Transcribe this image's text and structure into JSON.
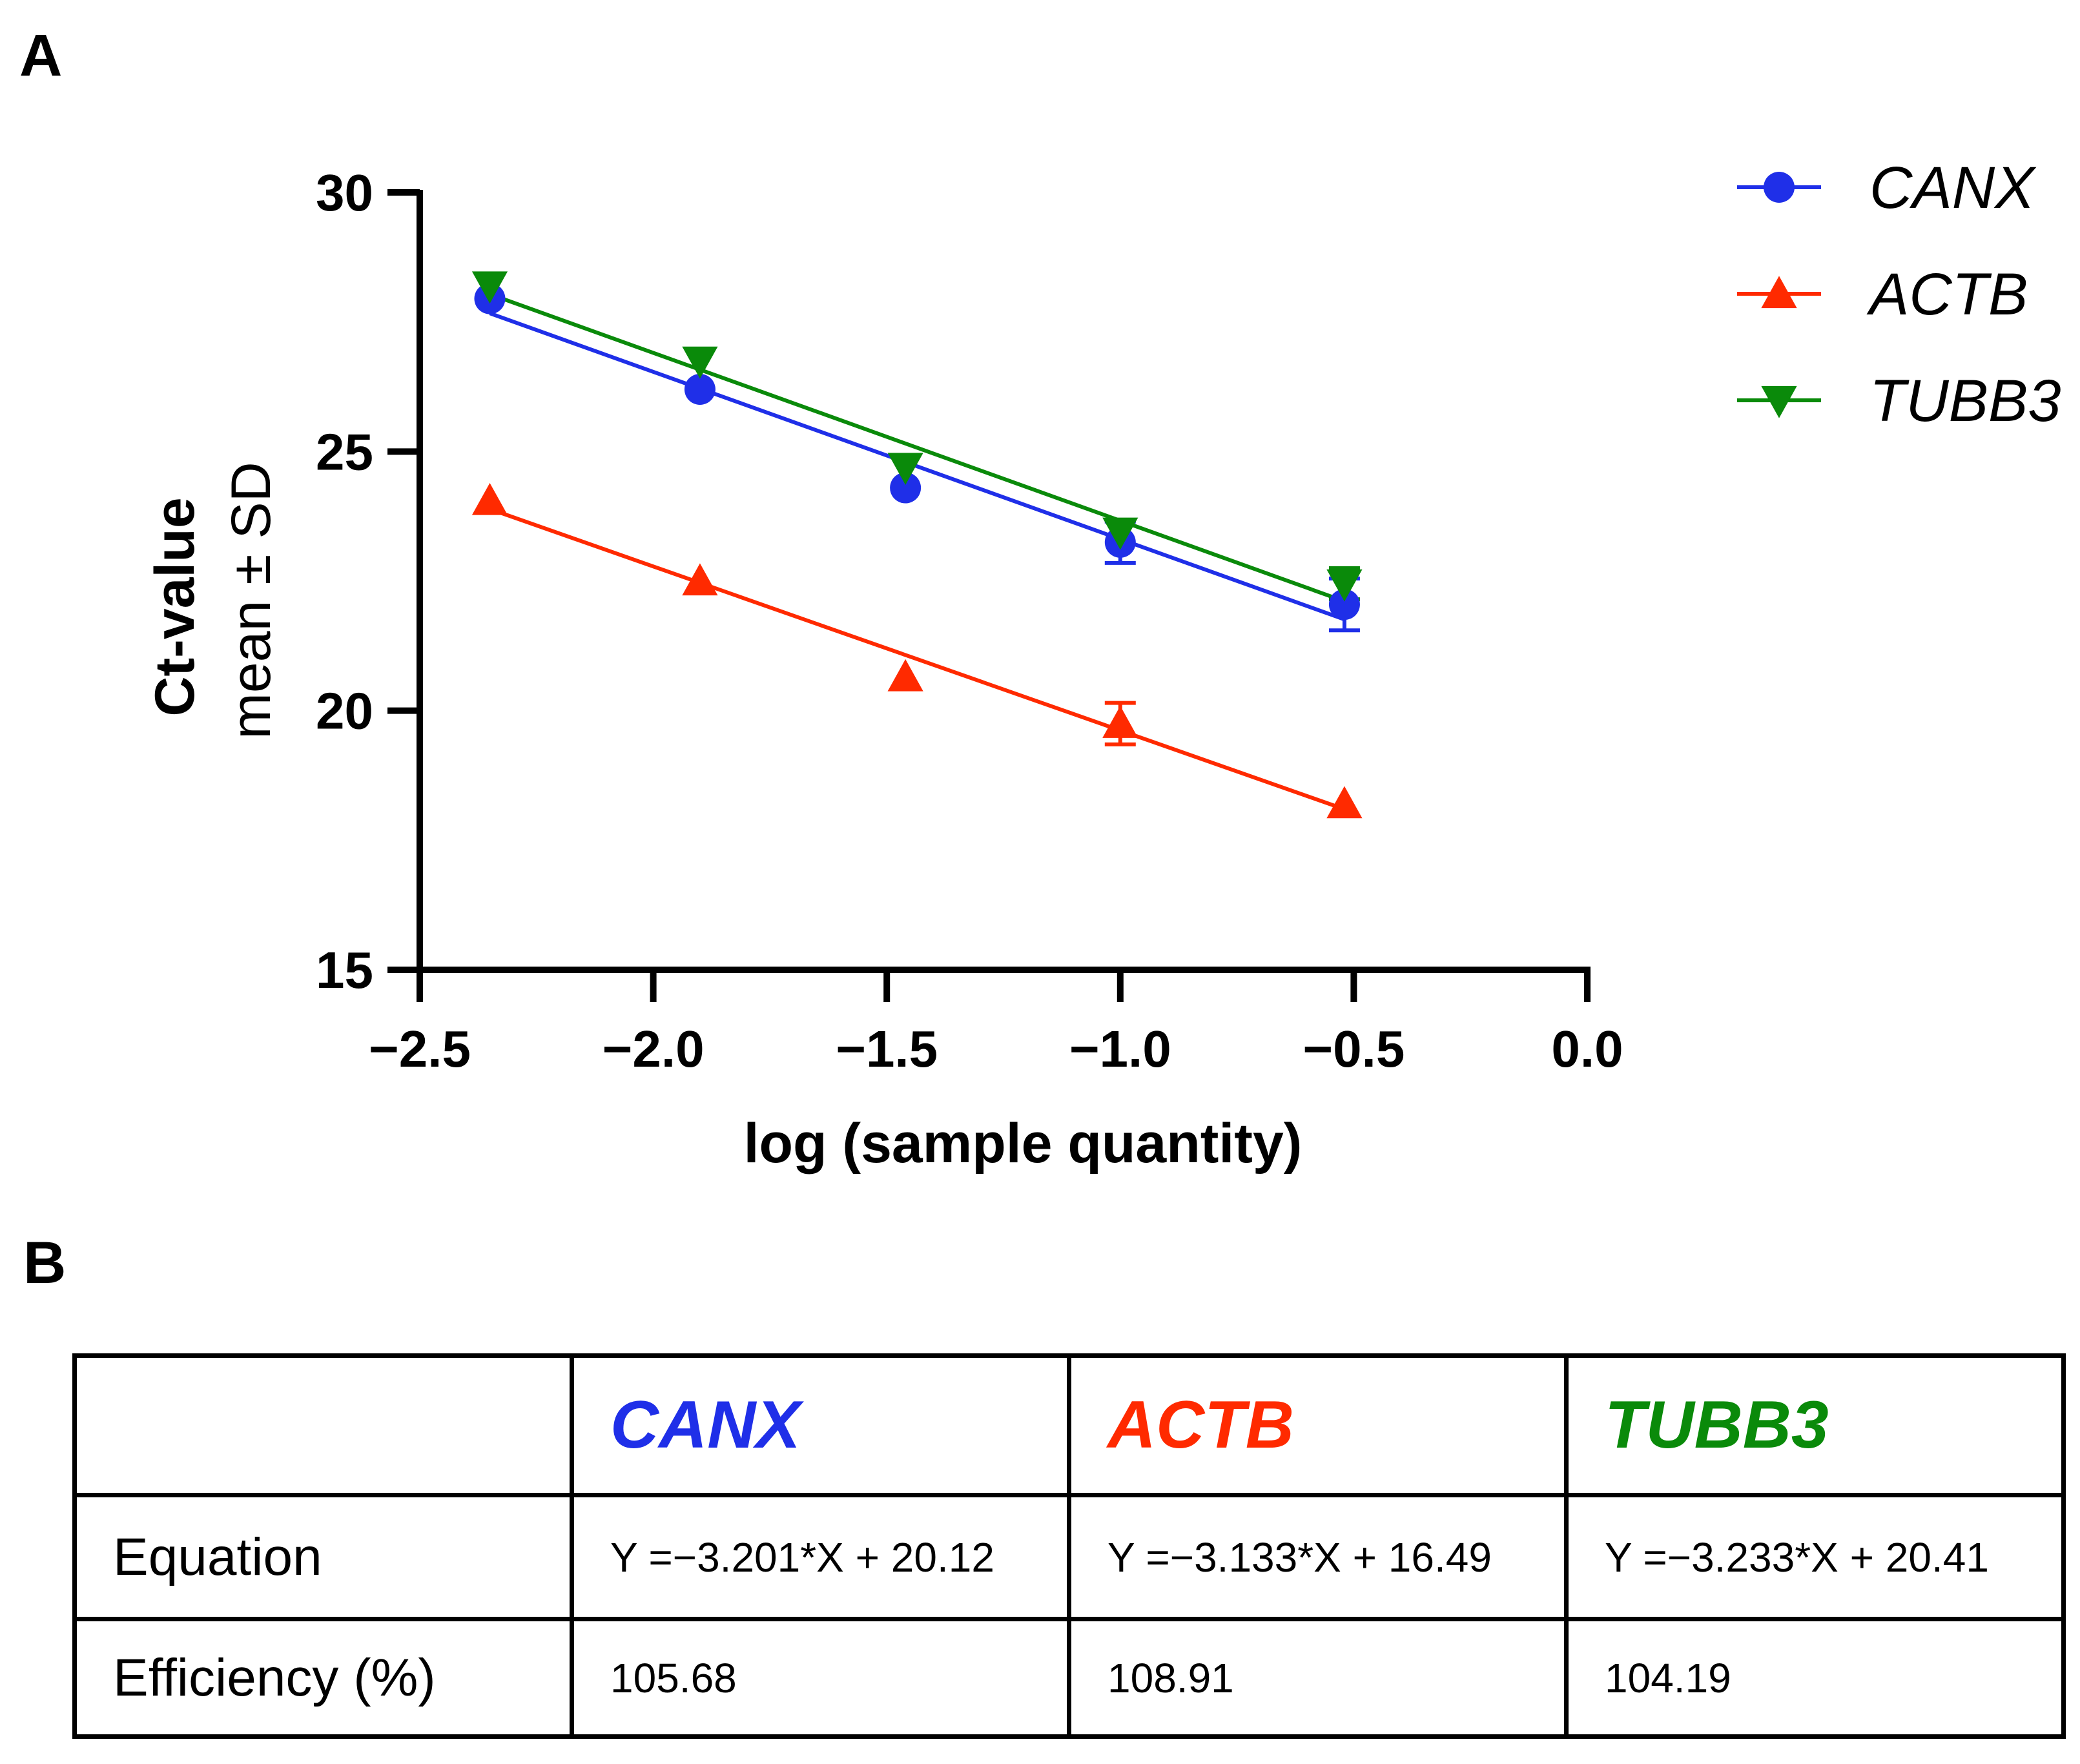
{
  "panels": {
    "a_label": "A",
    "b_label": "B"
  },
  "chart_data": {
    "type": "scatter",
    "xlabel": "log (sample quantity)",
    "ylabel_bold": "Ct-value",
    "ylabel_sub": "mean ± SD",
    "xlim": [
      -2.5,
      0.0
    ],
    "ylim": [
      15,
      30
    ],
    "x_ticks": [
      -2.5,
      -2.0,
      -1.5,
      -1.0,
      -0.5,
      0.0
    ],
    "x_tick_labels": [
      "−2.5",
      "−2.0",
      "−1.5",
      "−1.0",
      "−0.5",
      "0.0"
    ],
    "y_ticks": [
      15,
      20,
      25,
      30
    ],
    "y_tick_labels": [
      "15",
      "20",
      "25",
      "30"
    ],
    "grid": false,
    "legend_position": "top-right",
    "series": [
      {
        "name": "CANX",
        "color": "#1f2fe8",
        "marker": "circle",
        "x": [
          -2.35,
          -1.9,
          -1.46,
          -1.0,
          -0.52
        ],
        "y": [
          27.95,
          26.2,
          24.3,
          23.25,
          22.05
        ],
        "sd": [
          0.1,
          0.12,
          0.1,
          0.4,
          0.5
        ],
        "fit": {
          "slope": -3.201,
          "intercept": 20.12
        }
      },
      {
        "name": "ACTB",
        "color": "#ff2a00",
        "marker": "triangle-up",
        "x": [
          -2.35,
          -1.9,
          -1.46,
          -1.0,
          -0.52
        ],
        "y": [
          24.05,
          22.5,
          20.65,
          19.75,
          18.2
        ],
        "sd": [
          0.1,
          0.1,
          0.1,
          0.4,
          0.1
        ],
        "fit": {
          "slope": -3.133,
          "intercept": 16.49
        }
      },
      {
        "name": "TUBB3",
        "color": "#0a8a0a",
        "marker": "triangle-down",
        "x": [
          -2.35,
          -1.9,
          -1.46,
          -1.0,
          -0.52
        ],
        "y": [
          28.2,
          26.75,
          24.7,
          23.45,
          22.45
        ],
        "sd": [
          0.1,
          0.1,
          0.1,
          0.1,
          0.3
        ],
        "fit": {
          "slope": -3.233,
          "intercept": 20.41
        }
      }
    ]
  },
  "table": {
    "header": [
      "",
      "CANX",
      "ACTB",
      "TUBB3"
    ],
    "header_colors": [
      "#000000",
      "#1f2fe8",
      "#ff2a00",
      "#0a8a0a"
    ],
    "rows": [
      {
        "label": "Equation",
        "values": [
          "Y =−3.201*X + 20.12",
          "Y =−3.133*X + 16.49",
          "Y =−3.233*X + 20.41"
        ]
      },
      {
        "label": "Efficiency (%)",
        "values": [
          "105.68",
          "108.91",
          "104.19"
        ]
      }
    ]
  }
}
